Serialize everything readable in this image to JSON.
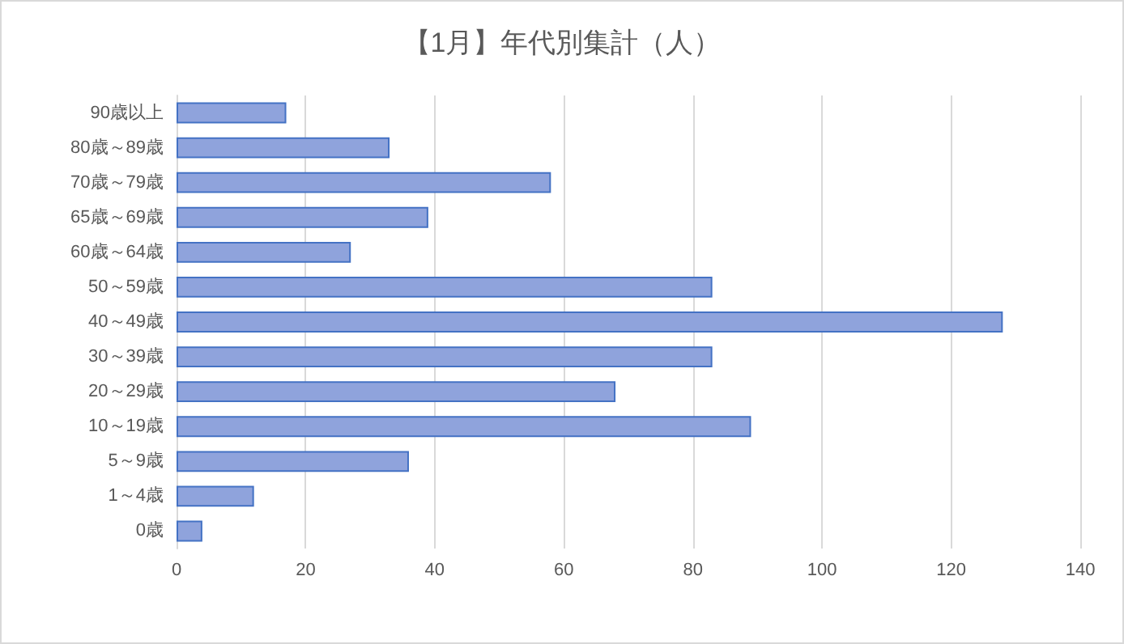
{
  "chart_data": {
    "type": "bar",
    "orientation": "horizontal",
    "title": "【1月】年代別集計（人）",
    "categories": [
      "90歳以上",
      "80歳～89歳",
      "70歳～79歳",
      "65歳～69歳",
      "60歳～64歳",
      "50～59歳",
      "40～49歳",
      "30～39歳",
      "20～29歳",
      "10～19歳",
      "5～9歳",
      "1～4歳",
      "0歳"
    ],
    "values": [
      17,
      33,
      58,
      39,
      27,
      83,
      128,
      83,
      68,
      89,
      36,
      12,
      4
    ],
    "color": "#8fa3dc",
    "xlim": [
      0,
      140
    ],
    "xticks": [
      0,
      20,
      40,
      60,
      80,
      100,
      120,
      140
    ],
    "grid": "x"
  }
}
